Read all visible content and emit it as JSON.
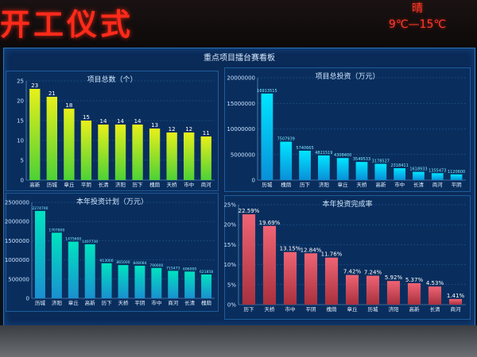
{
  "header": {
    "title_fragment": "开工仪式",
    "weather_condition": "晴",
    "temperature": "9℃—15℃"
  },
  "board": {
    "title": "重点项目擂台赛看板"
  },
  "colors": {
    "panel1": [
      "#4cd137",
      "#e8f01a"
    ],
    "panel2": [
      "#00d4ff",
      "#0a8fd8"
    ],
    "panel3": [
      "#00e3c0",
      "#1a8fd0"
    ],
    "panel4": [
      "#e85a6a",
      "#a8303e"
    ]
  },
  "chart_data": [
    {
      "type": "bar",
      "title": "项目总数（个）",
      "categories": [
        "高新",
        "历城",
        "章丘",
        "平阴",
        "长清",
        "济阳",
        "历下",
        "槐荫",
        "天桥",
        "市中",
        "商河"
      ],
      "values": [
        23,
        21,
        18,
        15,
        14,
        14,
        14,
        13,
        12,
        12,
        11
      ],
      "data_labels": [
        "23",
        "21",
        "18",
        "15",
        "14",
        "14",
        "14",
        "13",
        "12",
        "12",
        "11"
      ],
      "y_ticks": [
        "0",
        "5",
        "10",
        "15",
        "20",
        "25"
      ],
      "ylim": [
        0,
        25
      ]
    },
    {
      "type": "bar",
      "title": "项目总投资（万元）",
      "categories": [
        "历城",
        "槐荫",
        "历下",
        "济阳",
        "章丘",
        "天桥",
        "高新",
        "市中",
        "长清",
        "商河",
        "平阴"
      ],
      "values": [
        16913515,
        7507939,
        5740665,
        4821519,
        4308400,
        3549533,
        3178527,
        2318411,
        1618933,
        1355473,
        1120600
      ],
      "data_labels": [
        "16913515",
        "7507939",
        "5740665",
        "4821519",
        "4308400",
        "3549533",
        "3178527",
        "2318411",
        "1618933",
        "1355473",
        "1120600"
      ],
      "y_ticks": [
        "0",
        "5000000",
        "10000000",
        "15000000",
        "20000000"
      ],
      "ylim": [
        0,
        20000000
      ]
    },
    {
      "type": "bar",
      "title": "本年投资计划（万元）",
      "categories": [
        "历城",
        "济阳",
        "章丘",
        "高新",
        "历下",
        "天桥",
        "平阴",
        "市中",
        "商河",
        "长清",
        "槐荫"
      ],
      "values": [
        2274700,
        1707800,
        1475600,
        1407730,
        913000,
        865000,
        848084,
        790000,
        715473,
        696000,
        621858
      ],
      "data_labels": [
        "2274700",
        "1707800",
        "1475600",
        "1407730",
        "913000",
        "865000",
        "848084",
        "790000",
        "715473",
        "696000",
        "621858"
      ],
      "y_ticks": [
        "0",
        "500000",
        "1000000",
        "1500000",
        "2000000",
        "2500000"
      ],
      "ylim": [
        0,
        2500000
      ]
    },
    {
      "type": "bar",
      "title": "本年投资完成率",
      "categories": [
        "历下",
        "天桥",
        "市中",
        "平阴",
        "槐荫",
        "章丘",
        "历城",
        "济阳",
        "高新",
        "长清",
        "商河"
      ],
      "values": [
        22.59,
        19.69,
        13.15,
        12.84,
        11.76,
        7.42,
        7.24,
        5.92,
        5.37,
        4.53,
        1.41
      ],
      "data_labels": [
        "22.59%",
        "19.69%",
        "13.15%",
        "12.84%",
        "11.76%",
        "7.42%",
        "7.24%",
        "5.92%",
        "5.37%",
        "4.53%",
        "1.41%"
      ],
      "y_ticks": [
        "0%",
        "5%",
        "10%",
        "15%",
        "20%",
        "25%"
      ],
      "ylim": [
        0,
        25
      ]
    }
  ]
}
